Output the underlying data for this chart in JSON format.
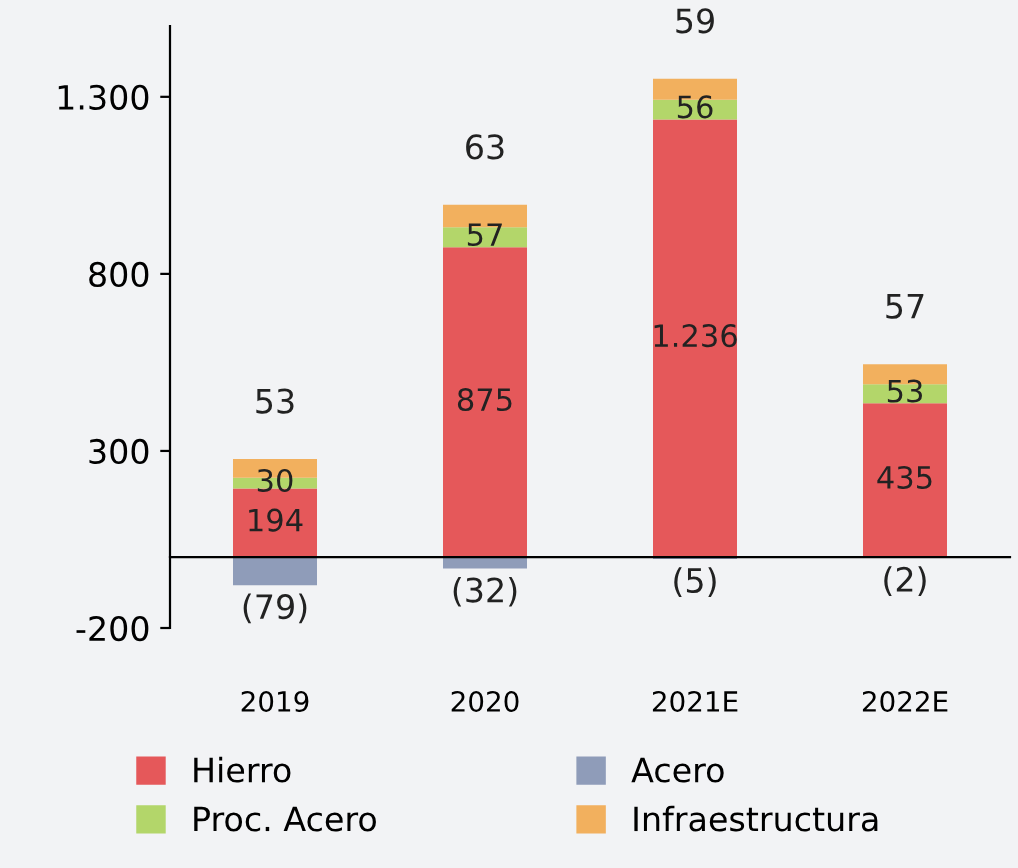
{
  "chart_data": {
    "type": "bar",
    "stacked": true,
    "categories": [
      "2019",
      "2020",
      "2021E",
      "2022E"
    ],
    "series": [
      {
        "name": "Hierro",
        "color": "#e5585a",
        "values": [
          194,
          875,
          1236,
          435
        ],
        "value_labels": [
          "194",
          "875",
          "1.236",
          "435"
        ]
      },
      {
        "name": "Acero",
        "color": "#8f9cb9",
        "values": [
          -79,
          -32,
          -5,
          -2
        ],
        "value_labels": [
          "(79)",
          "(32)",
          "(5)",
          "(2)"
        ]
      },
      {
        "name": "Proc. Acero",
        "color": "#b3d66a",
        "values": [
          30,
          57,
          56,
          53
        ],
        "value_labels": [
          "30",
          "57",
          "56",
          "53"
        ]
      },
      {
        "name": "Infraestructura",
        "color": "#f2b05e",
        "values": [
          53,
          63,
          59,
          57
        ],
        "value_labels": [
          "53",
          "63",
          "59",
          "57"
        ]
      }
    ],
    "ylim": [
      -200,
      1500
    ],
    "yticks": [
      {
        "value": -200,
        "label": "-200"
      },
      300,
      800,
      {
        "value": 1300,
        "label": "1.300"
      }
    ],
    "grid": false,
    "legend": "bottom"
  }
}
